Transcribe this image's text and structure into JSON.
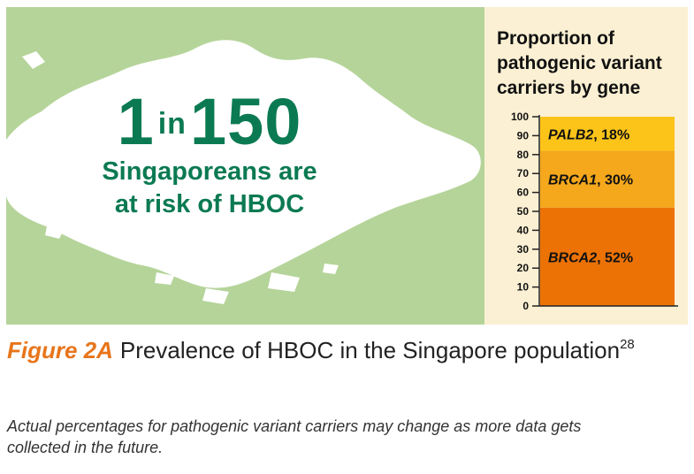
{
  "colors": {
    "map_background": "#b5d49a",
    "island": "#ffffff",
    "stat_text": "#0b7a52",
    "chart_background": "#fbf0d3",
    "figure_label": "#e8751a"
  },
  "stat": {
    "number_1": "1",
    "in_word": "in",
    "number_2": "150",
    "line_1": "Singaporeans are",
    "line_2": "at risk of HBOC"
  },
  "chart_data": {
    "type": "bar",
    "title": "Proportion of pathogenic variant carriers by gene",
    "ylim": [
      0,
      100
    ],
    "yticks": [
      0,
      10,
      20,
      30,
      40,
      50,
      60,
      70,
      80,
      90,
      100
    ],
    "stacked": true,
    "segments": [
      {
        "name": "BRCA2",
        "value": 52,
        "label": "BRCA2",
        "suffix": ", 52%",
        "color": "#ec7205"
      },
      {
        "name": "BRCA1",
        "value": 30,
        "label": "BRCA1",
        "suffix": ", 30%",
        "color": "#f5a81c"
      },
      {
        "name": "PALB2",
        "value": 18,
        "label": "PALB2",
        "suffix": ", 18%",
        "color": "#fcc419"
      }
    ]
  },
  "caption": {
    "figure_label": "Figure 2A",
    "text": "Prevalence of HBOC in the Singapore population",
    "superscript": "28",
    "note": "Actual percentages for pathogenic variant carriers may change as more data gets collected in the future."
  }
}
